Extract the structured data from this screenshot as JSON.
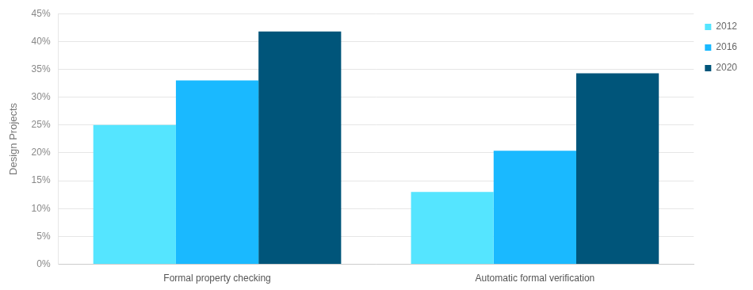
{
  "chart_data": {
    "type": "bar",
    "y_label": "Design Projects",
    "categories": [
      "Formal property checking",
      "Automatic formal verification"
    ],
    "series": [
      {
        "name": "2012",
        "color": "#55e5ff",
        "values": [
          25,
          13
        ]
      },
      {
        "name": "2016",
        "color": "#1ab9ff",
        "values": [
          33,
          20.4
        ]
      },
      {
        "name": "2020",
        "color": "#00557a",
        "values": [
          41.8,
          34.3
        ]
      }
    ],
    "ylim": [
      0,
      45
    ],
    "yticks": [
      {
        "value": 0,
        "label": "0%"
      },
      {
        "value": 5,
        "label": "5%"
      },
      {
        "value": 10,
        "label": "10%"
      },
      {
        "value": 15,
        "label": "15%"
      },
      {
        "value": 20,
        "label": "20%"
      },
      {
        "value": 25,
        "label": "25%"
      },
      {
        "value": 30,
        "label": "30%"
      },
      {
        "value": 35,
        "label": "35%"
      },
      {
        "value": 40,
        "label": "40%"
      },
      {
        "value": 45,
        "label": "45%"
      }
    ],
    "grid": true,
    "legend": "right"
  }
}
